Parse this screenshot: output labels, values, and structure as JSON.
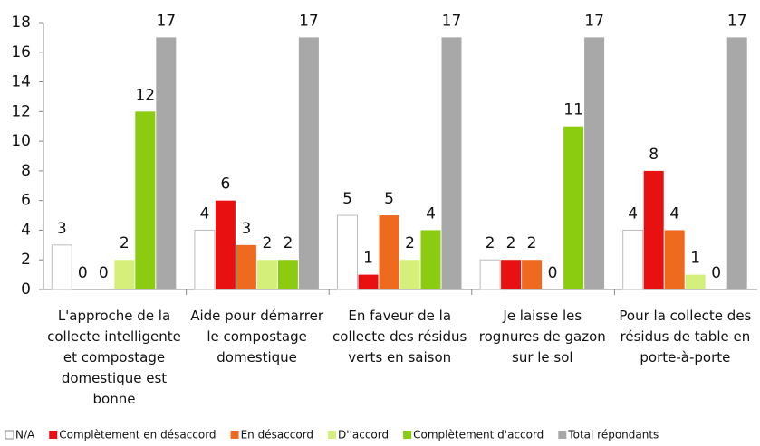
{
  "chart_data": {
    "type": "bar",
    "categories": [
      "L'approche de la collecte intelligente et compostage domestique est bonne",
      "Aide pour démarrer le compostage domestique",
      "En faveur de la collecte des résidus verts en saison",
      "Je laisse les rognures de gazon sur le sol",
      "Pour la collecte des résidus de table en porte-à-porte"
    ],
    "series": [
      {
        "name": "N/A",
        "color": "#ffffff",
        "values": [
          3,
          4,
          5,
          2,
          4
        ]
      },
      {
        "name": "Complètement en désaccord",
        "color": "#e81010",
        "values": [
          0,
          6,
          1,
          2,
          8
        ]
      },
      {
        "name": "En désaccord",
        "color": "#ee6a1e",
        "values": [
          0,
          3,
          5,
          2,
          4
        ]
      },
      {
        "name": "D''accord",
        "color": "#d4f07a",
        "values": [
          2,
          2,
          2,
          0,
          1
        ]
      },
      {
        "name": "Complètement d'accord",
        "color": "#8ccc10",
        "values": [
          12,
          2,
          4,
          11,
          0
        ]
      },
      {
        "name": "Total répondants",
        "color": "#a8a8a8",
        "values": [
          17,
          17,
          17,
          17,
          17
        ]
      }
    ],
    "ylim": [
      0,
      18
    ],
    "yticks": [
      0,
      2,
      4,
      6,
      8,
      10,
      12,
      14,
      16,
      18
    ],
    "grid": false,
    "legend": "bottom"
  }
}
